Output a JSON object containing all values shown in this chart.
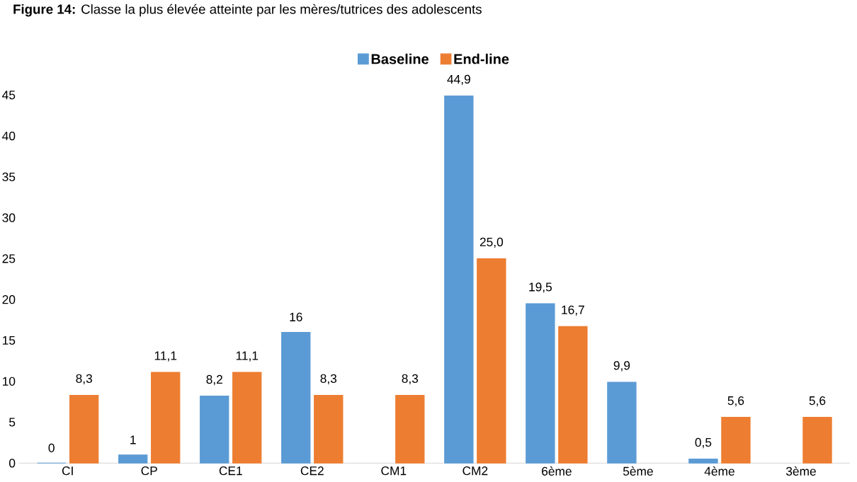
{
  "chart_data": {
    "type": "bar",
    "title": "**Figure 14:** Classe la plus élevée atteinte par les mères/tutrices des adolescents",
    "categories": [
      "CI",
      "CP",
      "CE1",
      "CE2",
      "CM1",
      "CM2",
      "6ème",
      "5ème",
      "4ème",
      "3ème"
    ],
    "series": [
      {
        "name": "Baseline",
        "color": "#5b9bd5",
        "values": [
          0,
          1,
          8.2,
          16,
          null,
          44.9,
          19.5,
          9.9,
          0.5,
          null
        ],
        "value_labels": [
          "0",
          "1",
          "8,2",
          "16",
          null,
          "44,9",
          "19,5",
          "9,9",
          "0,5",
          null
        ]
      },
      {
        "name": "End-line",
        "color": "#ed7d31",
        "values": [
          8.3,
          11.1,
          11.1,
          8.3,
          8.3,
          25.0,
          16.7,
          null,
          5.6,
          5.6
        ],
        "value_labels": [
          "8,3",
          "11,1",
          "11,1",
          "8,3",
          "8,3",
          "25,0",
          "16,7",
          null,
          "5,6",
          "5,6"
        ]
      }
    ],
    "ylim": [
      0,
      45
    ],
    "yticks": [
      0,
      5,
      10,
      15,
      20,
      25,
      30,
      35,
      40,
      45
    ],
    "grid": false,
    "legend": "top"
  }
}
